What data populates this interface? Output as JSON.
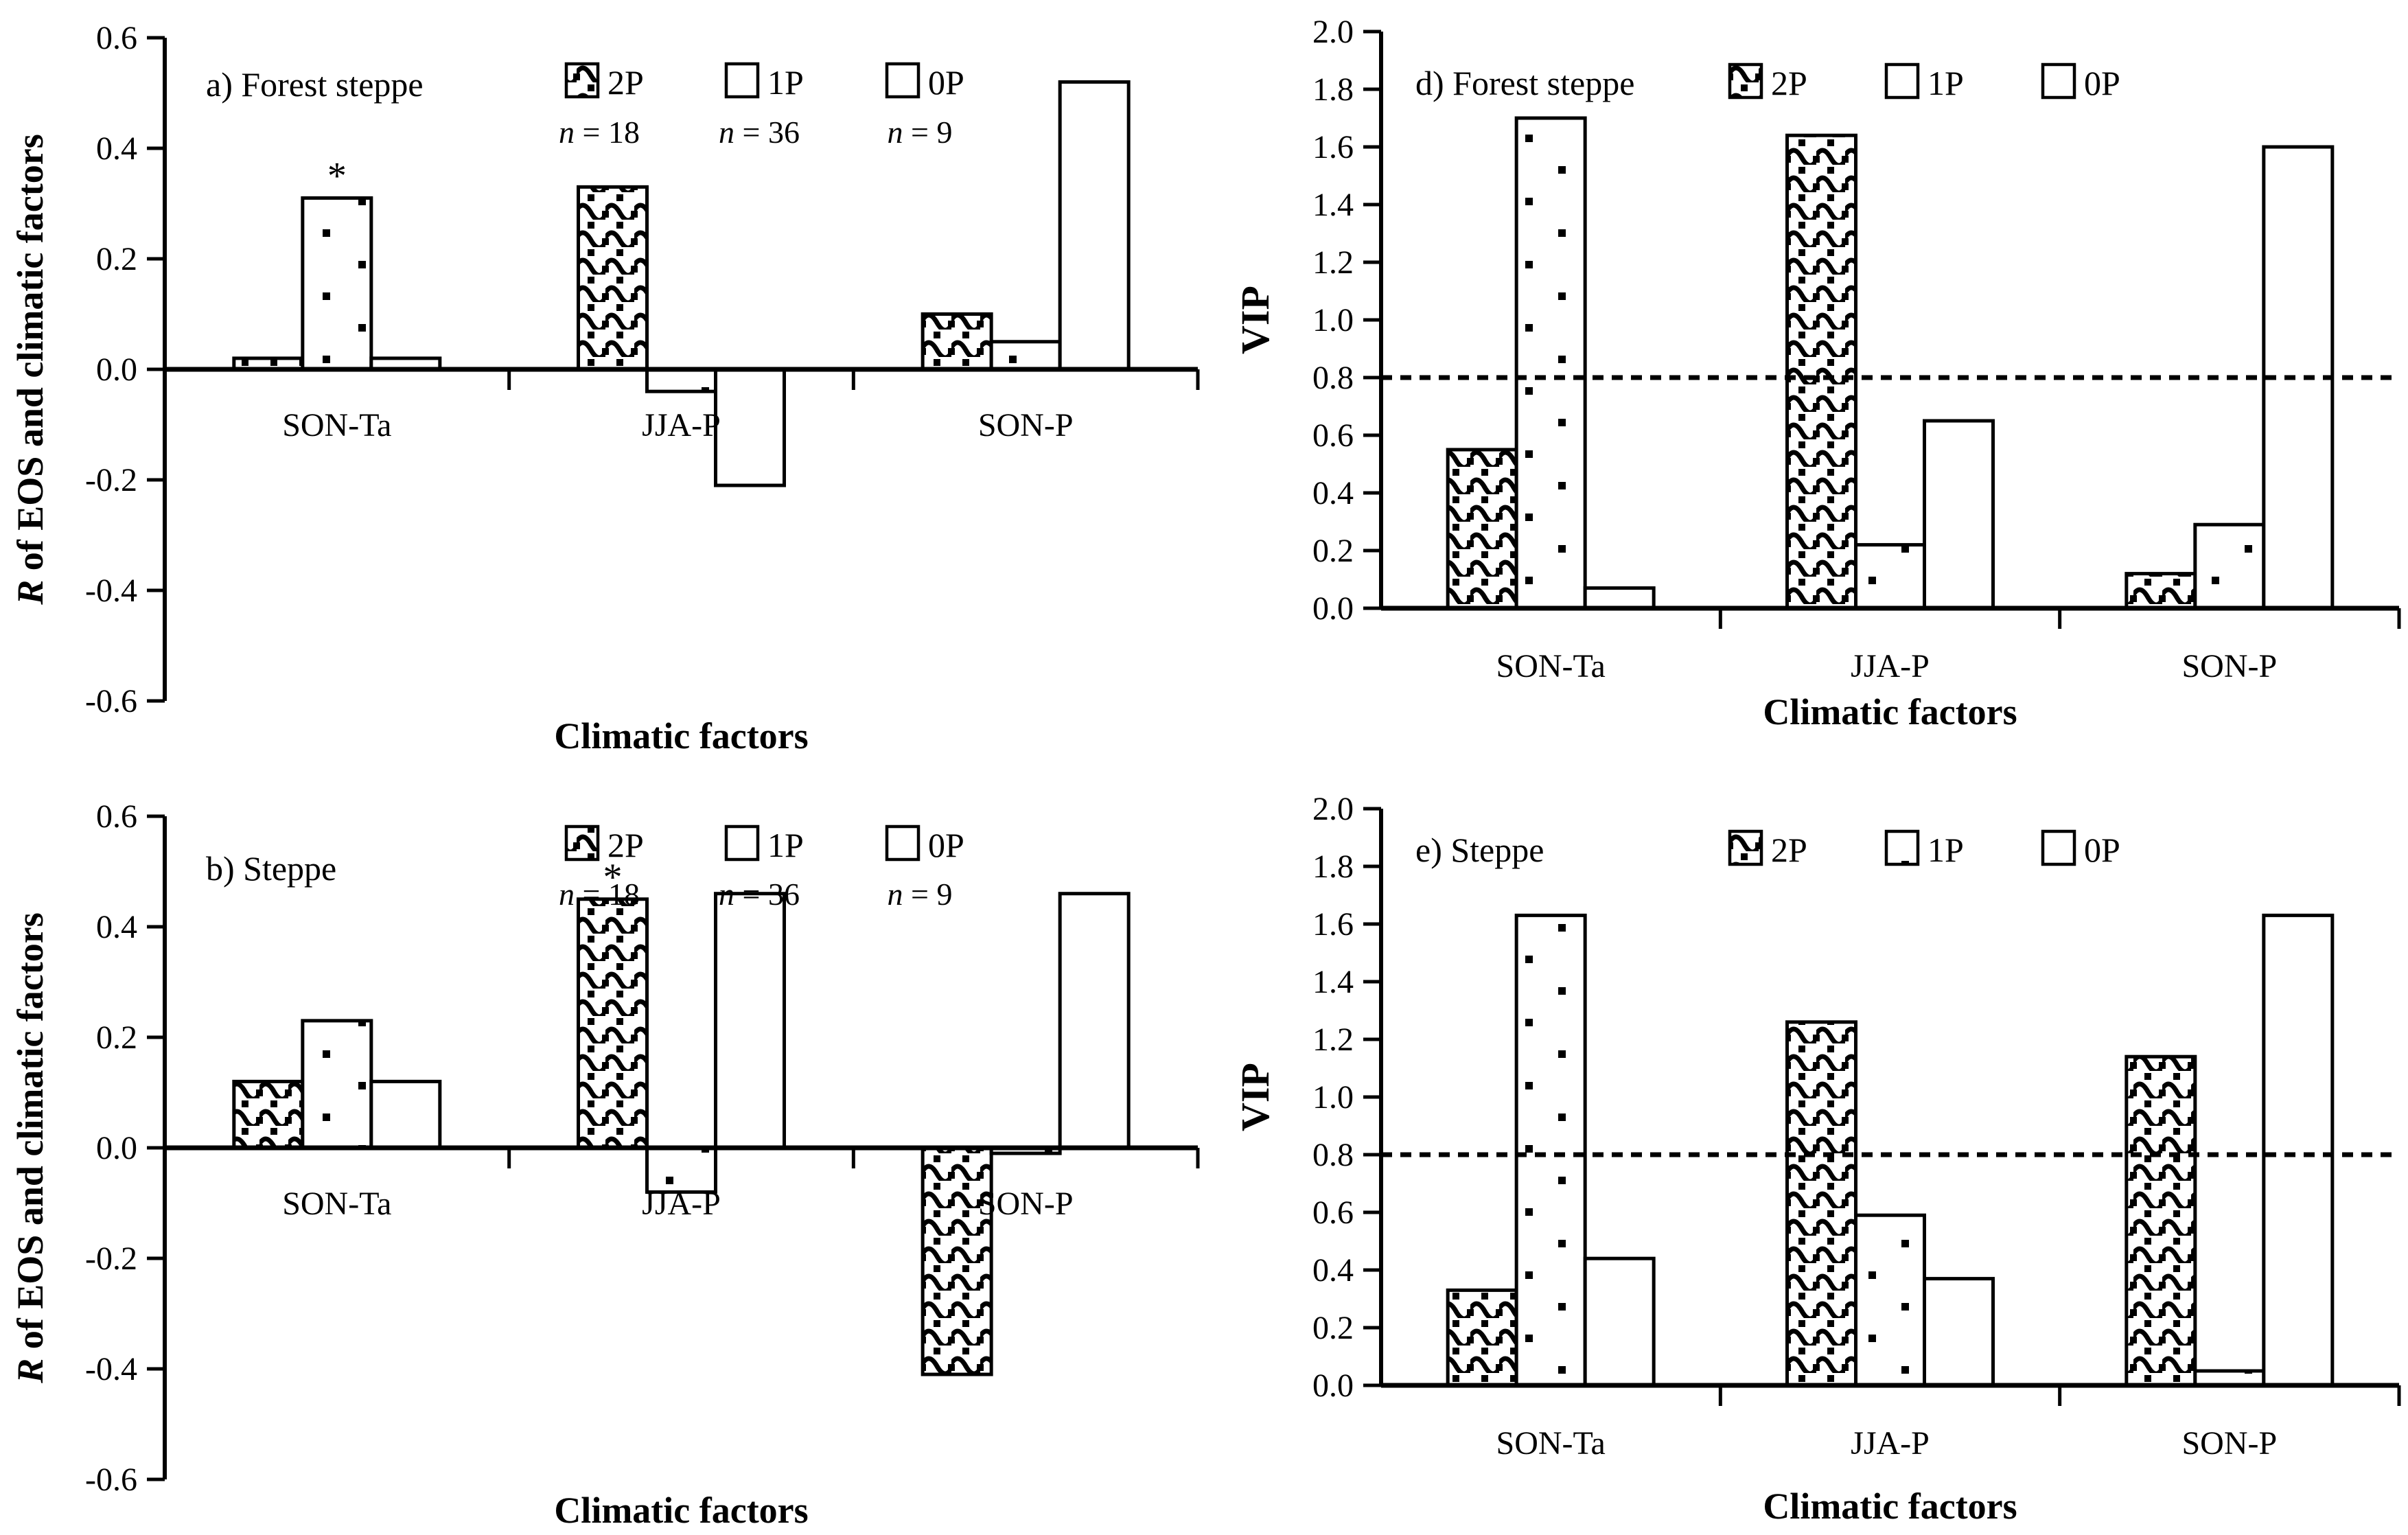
{
  "page": {
    "background_color": "#ffffff",
    "ink_color": "#000000",
    "figure_type": "four-panel bar chart figure"
  },
  "chart_data": [
    {
      "id": "a",
      "type": "bar",
      "panel_label": "a) Forest steppe",
      "ylabel": "R of EOS and climatic factors",
      "ylabel_first_word_italic": true,
      "xlabel": "Climatic factors",
      "ylim": [
        -0.6,
        0.6
      ],
      "ytick_labels": [
        "0.6",
        "0.4",
        "0.2",
        "0.0",
        "-0.2",
        "-0.4",
        "-0.6"
      ],
      "grid": "off",
      "legend_position": "top-inside",
      "legend_shows_n": true,
      "dashed_reference_line": null,
      "categories": [
        "SON-Ta",
        "JJA-P",
        "SON-P"
      ],
      "series": [
        {
          "name": "2P",
          "sample_size": "n = 18",
          "fill_pattern": "wave",
          "values": [
            0.02,
            0.33,
            0.1
          ]
        },
        {
          "name": "1P",
          "sample_size": "n = 36",
          "fill_pattern": "dots",
          "values": [
            0.31,
            -0.04,
            0.05
          ]
        },
        {
          "name": "0P",
          "sample_size": "n = 9",
          "fill_pattern": "plain",
          "values": [
            0.02,
            -0.21,
            0.52
          ]
        }
      ],
      "significance_marks": [
        {
          "symbol": "*",
          "category_index": 0,
          "series_index": 1
        }
      ]
    },
    {
      "id": "d",
      "type": "bar",
      "panel_label": "d) Forest steppe",
      "ylabel": "VIP",
      "ylabel_first_word_italic": false,
      "xlabel": "Climatic factors",
      "ylim": [
        0.0,
        2.0
      ],
      "ytick_labels": [
        "2.0",
        "1.8",
        "1.6",
        "1.4",
        "1.2",
        "1.0",
        "0.8",
        "0.6",
        "0.4",
        "0.2",
        "0.0"
      ],
      "grid": "off",
      "legend_position": "top-inside",
      "legend_shows_n": false,
      "dashed_reference_line": 0.8,
      "categories": [
        "SON-Ta",
        "JJA-P",
        "SON-P"
      ],
      "series": [
        {
          "name": "2P",
          "sample_size": null,
          "fill_pattern": "wave",
          "values": [
            0.55,
            1.64,
            0.12
          ]
        },
        {
          "name": "1P",
          "sample_size": null,
          "fill_pattern": "dots",
          "values": [
            1.7,
            0.22,
            0.29
          ]
        },
        {
          "name": "0P",
          "sample_size": null,
          "fill_pattern": "plain",
          "values": [
            0.07,
            0.65,
            1.6
          ]
        }
      ],
      "significance_marks": []
    },
    {
      "id": "b",
      "type": "bar",
      "panel_label": "b) Steppe",
      "ylabel": "R of EOS and climatic factors",
      "ylabel_first_word_italic": true,
      "xlabel": "Climatic factors",
      "ylim": [
        -0.6,
        0.6
      ],
      "ytick_labels": [
        "0.6",
        "0.4",
        "0.2",
        "0.0",
        "-0.2",
        "-0.4",
        "-0.6"
      ],
      "grid": "off",
      "legend_position": "top-inside",
      "legend_shows_n": true,
      "dashed_reference_line": null,
      "categories": [
        "SON-Ta",
        "JJA-P",
        "SON-P"
      ],
      "series": [
        {
          "name": "2P",
          "sample_size": "n = 18",
          "fill_pattern": "wave",
          "values": [
            0.12,
            0.45,
            -0.41
          ]
        },
        {
          "name": "1P",
          "sample_size": "n = 36",
          "fill_pattern": "dots",
          "values": [
            0.23,
            -0.08,
            -0.01
          ]
        },
        {
          "name": "0P",
          "sample_size": "n = 9",
          "fill_pattern": "plain",
          "values": [
            0.12,
            0.46,
            0.46
          ]
        }
      ],
      "significance_marks": [
        {
          "symbol": "*",
          "category_index": 1,
          "series_index": 0
        }
      ]
    },
    {
      "id": "e",
      "type": "bar",
      "panel_label": "e) Steppe",
      "ylabel": "VIP",
      "ylabel_first_word_italic": false,
      "xlabel": "Climatic factors",
      "ylim": [
        0.0,
        2.0
      ],
      "ytick_labels": [
        "2.0",
        "1.8",
        "1.6",
        "1.4",
        "1.2",
        "1.0",
        "0.8",
        "0.6",
        "0.4",
        "0.2",
        "0.0"
      ],
      "grid": "off",
      "legend_position": "top-inside",
      "legend_shows_n": false,
      "dashed_reference_line": 0.8,
      "categories": [
        "SON-Ta",
        "JJA-P",
        "SON-P"
      ],
      "series": [
        {
          "name": "2P",
          "sample_size": null,
          "fill_pattern": "wave",
          "values": [
            0.33,
            1.26,
            1.14
          ]
        },
        {
          "name": "1P",
          "sample_size": null,
          "fill_pattern": "dots",
          "values": [
            1.63,
            0.59,
            0.05
          ]
        },
        {
          "name": "0P",
          "sample_size": null,
          "fill_pattern": "plain",
          "values": [
            0.44,
            0.37,
            1.63
          ]
        }
      ],
      "significance_marks": []
    }
  ]
}
